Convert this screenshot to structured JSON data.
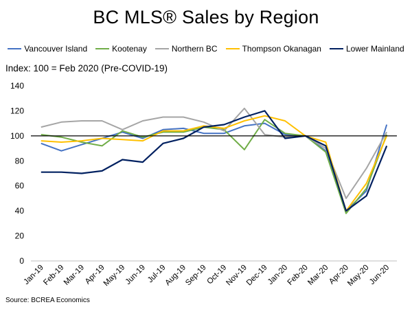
{
  "chart_data": {
    "type": "line",
    "title": "BC MLS® Sales by Region",
    "subtitle": "Index: 100 = Feb 2020 (Pre-COVID-19)",
    "source": "Source: BCREA Economics",
    "xlabel": "",
    "ylabel": "",
    "ylim": [
      0,
      140
    ],
    "yticks": [
      0,
      20,
      40,
      60,
      80,
      100,
      120,
      140
    ],
    "reference_line": 100,
    "legend_position": "top",
    "grid": false,
    "categories": [
      "Jan-19",
      "Feb-19",
      "Mar-19",
      "Apr-19",
      "May-19",
      "Jun-19",
      "Jul-19",
      "Aug-19",
      "Sep-19",
      "Oct-19",
      "Nov-19",
      "Dec-19",
      "Jan-20",
      "Feb-20",
      "Mar-20",
      "Apr-20",
      "May-20",
      "Jun-20"
    ],
    "series": [
      {
        "name": "Vancouver Island",
        "color": "#4472c4",
        "values": [
          94,
          88,
          93,
          98,
          103,
          98,
          105,
          106,
          102,
          102,
          108,
          110,
          101,
          100,
          88,
          40,
          56,
          109
        ]
      },
      {
        "name": "Kootenay",
        "color": "#70ad47",
        "values": [
          101,
          99,
          95,
          92,
          104,
          99,
          103,
          103,
          107,
          105,
          89,
          113,
          102,
          100,
          87,
          38,
          58,
          101
        ]
      },
      {
        "name": "Northern BC",
        "color": "#a5a5a5",
        "values": [
          107,
          111,
          112,
          112,
          105,
          112,
          115,
          115,
          111,
          104,
          122,
          101,
          99,
          100,
          90,
          50,
          74,
          103
        ]
      },
      {
        "name": "Thompson Okanagan",
        "color": "#ffc000",
        "values": [
          96,
          95,
          96,
          98,
          97,
          96,
          104,
          104,
          108,
          106,
          112,
          116,
          112,
          100,
          95,
          40,
          62,
          100
        ]
      },
      {
        "name": "Lower Mainland",
        "color": "#002060",
        "values": [
          71,
          71,
          70,
          72,
          81,
          79,
          94,
          98,
          107,
          109,
          115,
          120,
          98,
          100,
          92,
          40,
          52,
          92
        ]
      }
    ]
  }
}
